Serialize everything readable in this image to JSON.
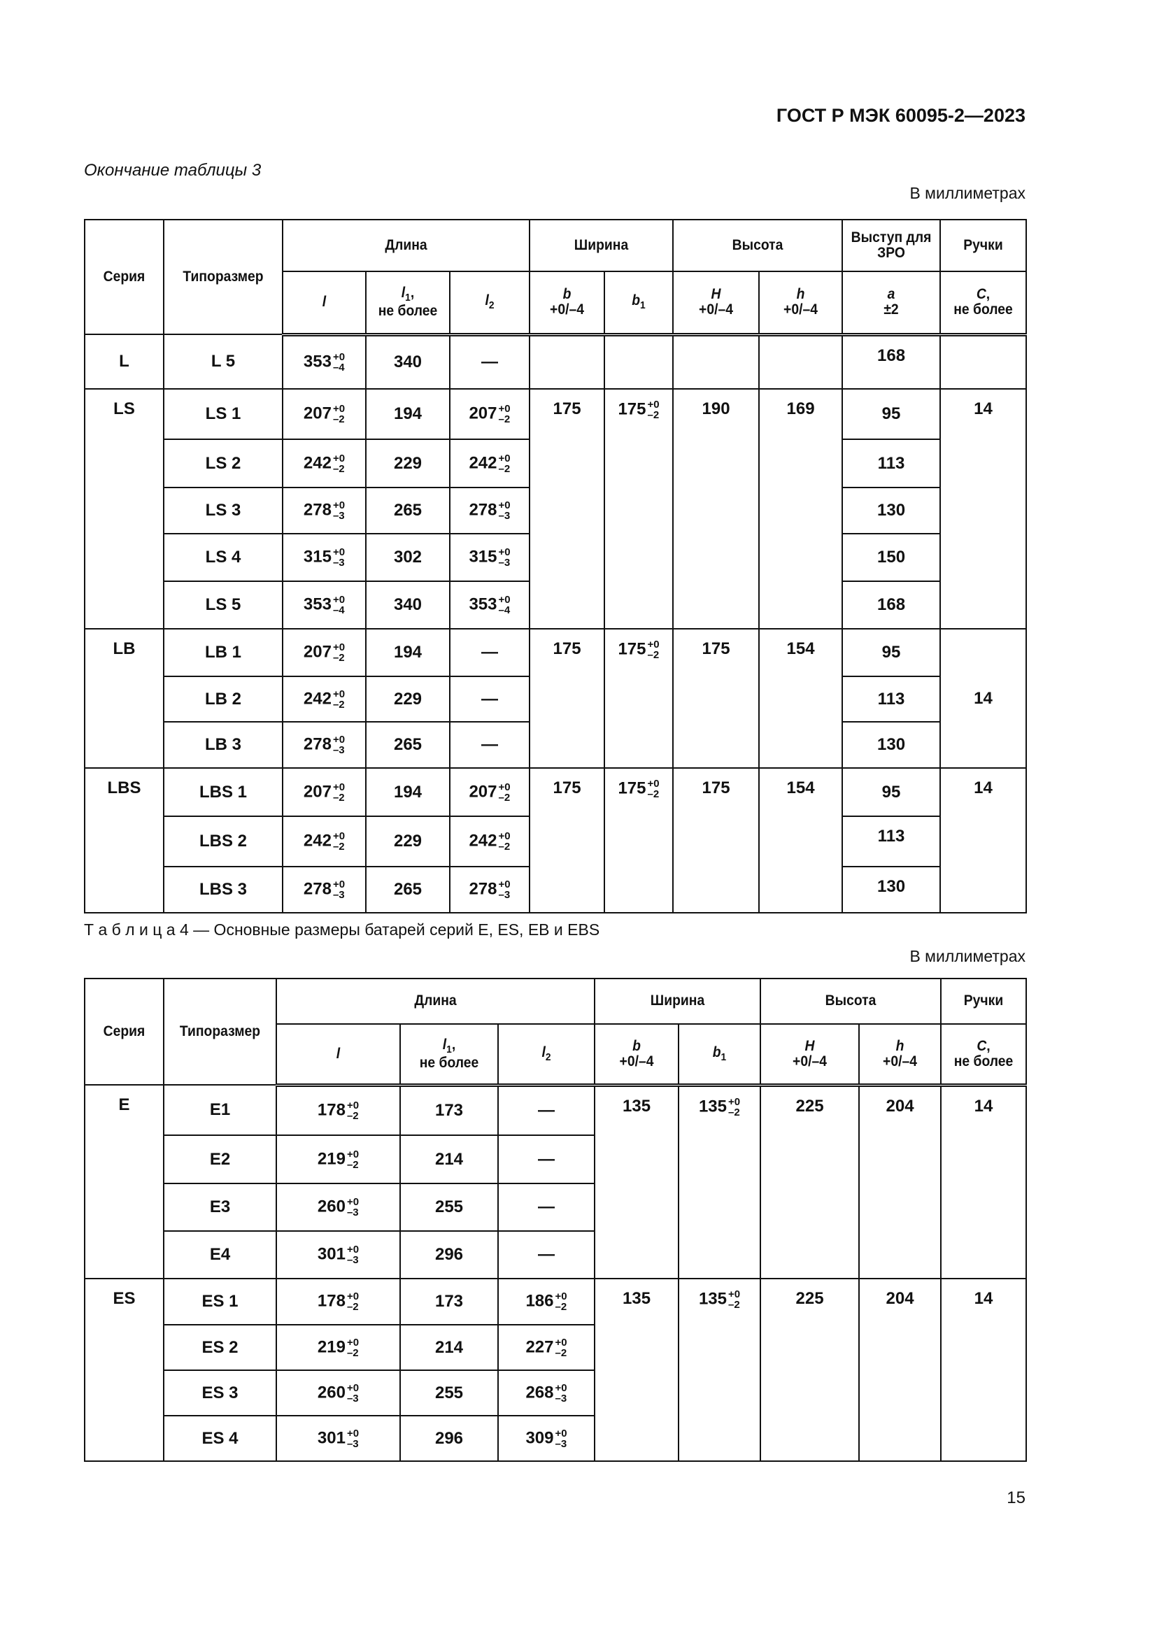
{
  "header": {
    "doc_title": "ГОСТ Р МЭК 60095-2—2023",
    "continuation": "Окончание таблицы 3",
    "units": "В миллиметрах"
  },
  "table3": {
    "head1": [
      {
        "t": "Серия",
        "rs": 2
      },
      {
        "t": "Типоразмер",
        "rs": 2
      },
      {
        "t": "Длина",
        "cs": 3
      },
      {
        "t": "Ширина",
        "cs": 2
      },
      {
        "t": "Высота",
        "cs": 2
      },
      {
        "t": "Выступ для ЗРО"
      },
      {
        "t": "Ручки"
      }
    ],
    "head2": [
      {
        "sym": "l"
      },
      {
        "sym": "l",
        "sub": "1",
        "suffix": ",",
        "note": "не более"
      },
      {
        "sym": "l",
        "sub": "2"
      },
      {
        "sym": "b",
        "note": "+0/–4"
      },
      {
        "sym": "b",
        "sub": "1"
      },
      {
        "sym": "H",
        "note": "+0/–4"
      },
      {
        "sym": "h",
        "note": "+0/–4"
      },
      {
        "sym": "a",
        "note": "±2"
      },
      {
        "sym": "C",
        "suffix": ",",
        "note": "не более"
      }
    ],
    "rows": [
      {
        "cells": [
          {
            "t": "L"
          },
          {
            "t": "L 5"
          },
          {
            "v": "353",
            "up": "+0",
            "lo": "–4"
          },
          {
            "t": "340"
          },
          {
            "t": "—"
          },
          {
            "t": ""
          },
          {
            "t": ""
          },
          {
            "t": ""
          },
          {
            "t": ""
          },
          {
            "t": "168"
          },
          {
            "t": ""
          }
        ]
      },
      {
        "cells": [
          {
            "t": "LS",
            "rs": 5
          },
          {
            "t": "LS 1"
          },
          {
            "v": "207",
            "up": "+0",
            "lo": "–2"
          },
          {
            "t": "194"
          },
          {
            "v": "207",
            "up": "+0",
            "lo": "–2"
          },
          {
            "t": "175",
            "rs": 5
          },
          {
            "v": "175",
            "up": "+0",
            "lo": "–2",
            "rs": 5
          },
          {
            "t": "190",
            "rs": 5
          },
          {
            "t": "169",
            "rs": 5
          },
          {
            "t": "95"
          },
          {
            "t": "14",
            "rs": 5
          }
        ]
      },
      {
        "cells": [
          {
            "t": "LS 2"
          },
          {
            "v": "242",
            "up": "+0",
            "lo": "–2"
          },
          {
            "t": "229"
          },
          {
            "v": "242",
            "up": "+0",
            "lo": "–2"
          },
          {
            "t": "113"
          }
        ]
      },
      {
        "cells": [
          {
            "t": "LS 3"
          },
          {
            "v": "278",
            "up": "+0",
            "lo": "–3"
          },
          {
            "t": "265"
          },
          {
            "v": "278",
            "up": "+0",
            "lo": "–3"
          },
          {
            "t": "130"
          }
        ]
      },
      {
        "cells": [
          {
            "t": "LS 4"
          },
          {
            "v": "315",
            "up": "+0",
            "lo": "–3"
          },
          {
            "t": "302"
          },
          {
            "v": "315",
            "up": "+0",
            "lo": "–3"
          },
          {
            "t": "150"
          }
        ]
      },
      {
        "cells": [
          {
            "t": "LS 5"
          },
          {
            "v": "353",
            "up": "+0",
            "lo": "–4"
          },
          {
            "t": "340"
          },
          {
            "v": "353",
            "up": "+0",
            "lo": "–4"
          },
          {
            "t": "168"
          }
        ]
      },
      {
        "cells": [
          {
            "t": "LB",
            "rs": 3
          },
          {
            "t": "LB 1"
          },
          {
            "v": "207",
            "up": "+0",
            "lo": "–2"
          },
          {
            "t": "194"
          },
          {
            "t": "—"
          },
          {
            "t": "175",
            "rs": 3
          },
          {
            "v": "175",
            "up": "+0",
            "lo": "–2",
            "rs": 3
          },
          {
            "t": "175",
            "rs": 3
          },
          {
            "t": "154",
            "rs": 3
          },
          {
            "t": "95"
          },
          {
            "t": "14",
            "rs": 3
          }
        ]
      },
      {
        "cells": [
          {
            "t": "LB 2"
          },
          {
            "v": "242",
            "up": "+0",
            "lo": "–2"
          },
          {
            "t": "229"
          },
          {
            "t": "—"
          },
          {
            "t": "113"
          }
        ]
      },
      {
        "cells": [
          {
            "t": "LB 3"
          },
          {
            "v": "278",
            "up": "+0",
            "lo": "–3"
          },
          {
            "t": "265"
          },
          {
            "t": "—"
          },
          {
            "t": "130"
          }
        ]
      },
      {
        "cells": [
          {
            "t": "LBS",
            "rs": 3
          },
          {
            "t": "LBS 1"
          },
          {
            "v": "207",
            "up": "+0",
            "lo": "–2"
          },
          {
            "t": "194"
          },
          {
            "v": "207",
            "up": "+0",
            "lo": "–2"
          },
          {
            "t": "175",
            "rs": 3
          },
          {
            "v": "175",
            "up": "+0",
            "lo": "–2",
            "rs": 3
          },
          {
            "t": "175",
            "rs": 3
          },
          {
            "t": "154",
            "rs": 3
          },
          {
            "t": "95"
          },
          {
            "t": "14",
            "rs": 3
          }
        ]
      },
      {
        "cells": [
          {
            "t": "LBS 2"
          },
          {
            "v": "242",
            "up": "+0",
            "lo": "–2"
          },
          {
            "t": "229"
          },
          {
            "v": "242",
            "up": "+0",
            "lo": "–2"
          },
          {
            "t": "113"
          }
        ]
      },
      {
        "cells": [
          {
            "t": "LBS 3"
          },
          {
            "v": "278",
            "up": "+0",
            "lo": "–3"
          },
          {
            "t": "265"
          },
          {
            "v": "278",
            "up": "+0",
            "lo": "–3"
          },
          {
            "t": "130"
          }
        ]
      }
    ]
  },
  "caption": "Т а б л и ц а 4 — Основные размеры батарей серий E, ES, EB и EBS",
  "table4": {
    "head1": [
      {
        "t": "Серия",
        "rs": 2
      },
      {
        "t": "Типоразмер",
        "rs": 2
      },
      {
        "t": "Длина",
        "cs": 3
      },
      {
        "t": "Ширина",
        "cs": 2
      },
      {
        "t": "Высота",
        "cs": 2
      },
      {
        "t": "Ручки"
      }
    ],
    "head2": [
      {
        "sym": "l"
      },
      {
        "sym": "l",
        "sub": "1",
        "suffix": ",",
        "note": "не более"
      },
      {
        "sym": "l",
        "sub": "2"
      },
      {
        "sym": "b",
        "note": "+0/–4"
      },
      {
        "sym": "b",
        "sub": "1"
      },
      {
        "sym": "H",
        "note": "+0/–4"
      },
      {
        "sym": "h",
        "note": "+0/–4"
      },
      {
        "sym": "C",
        "suffix": ",",
        "note": "не более"
      }
    ],
    "rows": [
      {
        "cells": [
          {
            "t": "E",
            "rs": 4
          },
          {
            "t": "E1"
          },
          {
            "v": "178",
            "up": "+0",
            "lo": "–2"
          },
          {
            "t": "173"
          },
          {
            "t": "—"
          },
          {
            "t": "135",
            "rs": 4
          },
          {
            "v": "135",
            "up": "+0",
            "lo": "–2",
            "rs": 4
          },
          {
            "t": "225",
            "rs": 4
          },
          {
            "t": "204",
            "rs": 4
          },
          {
            "t": "14",
            "rs": 4
          }
        ]
      },
      {
        "cells": [
          {
            "t": "E2"
          },
          {
            "v": "219",
            "up": "+0",
            "lo": "–2"
          },
          {
            "t": "214"
          },
          {
            "t": "—"
          }
        ]
      },
      {
        "cells": [
          {
            "t": "E3"
          },
          {
            "v": "260",
            "up": "+0",
            "lo": "–3"
          },
          {
            "t": "255"
          },
          {
            "t": "—"
          }
        ]
      },
      {
        "cells": [
          {
            "t": "E4"
          },
          {
            "v": "301",
            "up": "+0",
            "lo": "–3"
          },
          {
            "t": "296"
          },
          {
            "t": "—"
          }
        ]
      },
      {
        "cells": [
          {
            "t": "ES",
            "rs": 4
          },
          {
            "t": "ES 1"
          },
          {
            "v": "178",
            "up": "+0",
            "lo": "–2"
          },
          {
            "t": "173"
          },
          {
            "v": "186",
            "up": "+0",
            "lo": "–2"
          },
          {
            "t": "135",
            "rs": 4
          },
          {
            "v": "135",
            "up": "+0",
            "lo": "–2",
            "rs": 4
          },
          {
            "t": "225",
            "rs": 4
          },
          {
            "t": "204",
            "rs": 4
          },
          {
            "t": "14",
            "rs": 4
          }
        ]
      },
      {
        "cells": [
          {
            "t": "ES 2"
          },
          {
            "v": "219",
            "up": "+0",
            "lo": "–2"
          },
          {
            "t": "214"
          },
          {
            "v": "227",
            "up": "+0",
            "lo": "–2"
          }
        ]
      },
      {
        "cells": [
          {
            "t": "ES 3"
          },
          {
            "v": "260",
            "up": "+0",
            "lo": "–3"
          },
          {
            "t": "255"
          },
          {
            "v": "268",
            "up": "+0",
            "lo": "–3"
          }
        ]
      },
      {
        "cells": [
          {
            "t": "ES 4"
          },
          {
            "v": "301",
            "up": "+0",
            "lo": "–3"
          },
          {
            "t": "296"
          },
          {
            "v": "309",
            "up": "+0",
            "lo": "–3"
          }
        ]
      }
    ]
  },
  "page_number": "15"
}
